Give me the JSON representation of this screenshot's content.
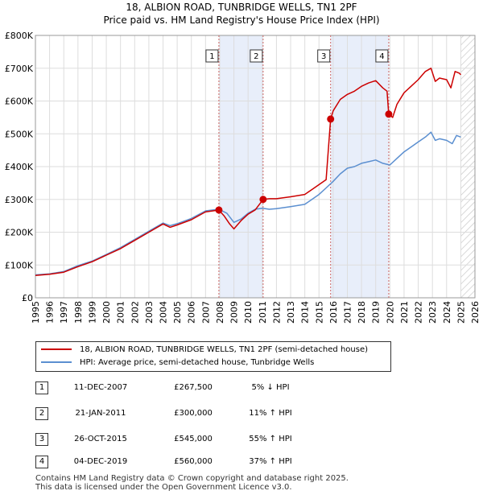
{
  "chart_data": {
    "type": "line",
    "title": "18, ALBION ROAD, TUNBRIDGE WELLS, TN1 2PF",
    "subtitle": "Price paid vs. HM Land Registry's House Price Index (HPI)",
    "xlabel": "",
    "ylabel": "",
    "xlim": [
      1995,
      2026
    ],
    "ylim": [
      0,
      800000
    ],
    "x_ticks": [
      "1995",
      "1996",
      "1997",
      "1998",
      "1999",
      "2000",
      "2001",
      "2002",
      "2003",
      "2004",
      "2005",
      "2006",
      "2007",
      "2008",
      "2009",
      "2010",
      "2011",
      "2012",
      "2013",
      "2014",
      "2015",
      "2016",
      "2017",
      "2018",
      "2019",
      "2020",
      "2021",
      "2022",
      "2023",
      "2024",
      "2025",
      "2026"
    ],
    "y_ticks": [
      {
        "value": 0,
        "label": "£0"
      },
      {
        "value": 100000,
        "label": "£100K"
      },
      {
        "value": 200000,
        "label": "£200K"
      },
      {
        "value": 300000,
        "label": "£300K"
      },
      {
        "value": 400000,
        "label": "£400K"
      },
      {
        "value": 500000,
        "label": "£500K"
      },
      {
        "value": 600000,
        "label": "£600K"
      },
      {
        "value": 700000,
        "label": "£700K"
      },
      {
        "value": 800000,
        "label": "£800K"
      }
    ],
    "grid": true,
    "series": [
      {
        "name": "18, ALBION ROAD, TUNBRIDGE WELLS, TN1 2PF (semi-detached house)",
        "color": "#cc0000",
        "x": [
          1995.0,
          1996.0,
          1997.0,
          1998.0,
          1999.0,
          2000.0,
          2001.0,
          2002.0,
          2003.0,
          2004.0,
          2004.5,
          2005.0,
          2006.0,
          2007.0,
          2007.94,
          2008.3,
          2008.7,
          2009.0,
          2009.5,
          2010.0,
          2010.5,
          2011.06,
          2011.5,
          2012.0,
          2013.0,
          2014.0,
          2014.5,
          2015.0,
          2015.5,
          2015.82,
          2016.0,
          2016.5,
          2017.0,
          2017.5,
          2018.0,
          2018.5,
          2019.0,
          2019.5,
          2019.8,
          2019.92,
          2020.2,
          2020.5,
          2021.0,
          2021.5,
          2022.0,
          2022.5,
          2022.9,
          2023.2,
          2023.5,
          2024.0,
          2024.3,
          2024.6,
          2024.9,
          2025.0
        ],
        "y": [
          68000,
          72000,
          78000,
          95000,
          110000,
          130000,
          150000,
          175000,
          200000,
          225000,
          215000,
          222000,
          238000,
          262000,
          267500,
          250000,
          225000,
          210000,
          235000,
          255000,
          268000,
          300000,
          302000,
          302000,
          308000,
          315000,
          330000,
          345000,
          360000,
          545000,
          570000,
          605000,
          620000,
          630000,
          645000,
          655000,
          662000,
          640000,
          630000,
          560000,
          550000,
          590000,
          625000,
          645000,
          665000,
          690000,
          700000,
          660000,
          670000,
          665000,
          640000,
          690000,
          685000,
          680000
        ]
      },
      {
        "name": "HPI: Average price, semi-detached house, Tunbridge Wells",
        "color": "#5b8fd0",
        "x": [
          1995.0,
          1996.0,
          1997.0,
          1998.0,
          1999.0,
          2000.0,
          2001.0,
          2002.0,
          2003.0,
          2004.0,
          2004.5,
          2005.0,
          2006.0,
          2007.0,
          2007.94,
          2008.5,
          2009.0,
          2009.5,
          2010.0,
          2010.5,
          2011.0,
          2011.5,
          2012.0,
          2013.0,
          2014.0,
          2014.5,
          2015.0,
          2015.5,
          2016.0,
          2016.5,
          2017.0,
          2017.5,
          2018.0,
          2018.5,
          2019.0,
          2019.5,
          2020.0,
          2020.5,
          2021.0,
          2021.5,
          2022.0,
          2022.5,
          2022.9,
          2023.2,
          2023.5,
          2024.0,
          2024.4,
          2024.7,
          2025.0
        ],
        "y": [
          70000,
          73000,
          80000,
          98000,
          112000,
          132000,
          153000,
          178000,
          203000,
          228000,
          220000,
          226000,
          242000,
          265000,
          270000,
          258000,
          230000,
          240000,
          258000,
          270000,
          273000,
          270000,
          272000,
          278000,
          285000,
          300000,
          315000,
          335000,
          355000,
          378000,
          395000,
          400000,
          410000,
          415000,
          420000,
          410000,
          405000,
          425000,
          445000,
          460000,
          475000,
          490000,
          505000,
          480000,
          485000,
          480000,
          470000,
          495000,
          490000
        ]
      }
    ],
    "sales": [
      {
        "label": "1",
        "x": 2007.94,
        "y": 267500
      },
      {
        "label": "2",
        "x": 2011.06,
        "y": 300000
      },
      {
        "label": "3",
        "x": 2015.82,
        "y": 545000
      },
      {
        "label": "4",
        "x": 2019.92,
        "y": 560000
      }
    ],
    "shaded_ranges": [
      [
        2007.94,
        2011.06
      ],
      [
        2015.82,
        2019.92
      ]
    ],
    "future_start": 2025.0,
    "legend_location": "below"
  },
  "legend": {
    "property_label": "18, ALBION ROAD, TUNBRIDGE WELLS, TN1 2PF (semi-detached house)",
    "hpi_label": "HPI: Average price, semi-detached house, Tunbridge Wells",
    "property_color": "#cc0000",
    "hpi_color": "#5b8fd0"
  },
  "sales_table": [
    {
      "num": "1",
      "date": "11-DEC-2007",
      "price": "£267,500",
      "hpi": "5% ↓ HPI"
    },
    {
      "num": "2",
      "date": "21-JAN-2011",
      "price": "£300,000",
      "hpi": "11% ↑ HPI"
    },
    {
      "num": "3",
      "date": "26-OCT-2015",
      "price": "£545,000",
      "hpi": "55% ↑ HPI"
    },
    {
      "num": "4",
      "date": "04-DEC-2019",
      "price": "£560,000",
      "hpi": "37% ↑ HPI"
    }
  ],
  "footer": {
    "line1": "Contains HM Land Registry data © Crown copyright and database right 2025.",
    "line2": "This data is licensed under the Open Government Licence v3.0."
  }
}
